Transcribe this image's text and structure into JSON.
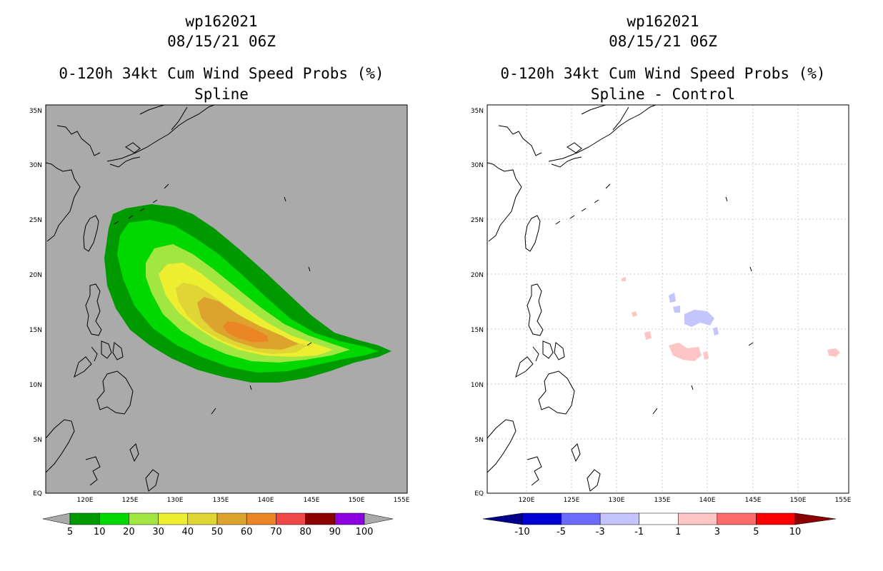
{
  "left": {
    "title1": "wp162021",
    "title2": "08/15/21 06Z",
    "title3": "0-120h 34kt Cum Wind Speed Probs (%)",
    "title4": "Spline",
    "background": "#aaaaaa",
    "colorbar": {
      "colors": [
        "#009a00",
        "#00d900",
        "#a1e641",
        "#eeee30",
        "#dfd535",
        "#dda42d",
        "#ec8526",
        "#f04747",
        "#8c0000",
        "#8d00e0"
      ],
      "labels": [
        "5",
        "10",
        "20",
        "30",
        "40",
        "50",
        "60",
        "70",
        "80",
        "90",
        "100"
      ]
    }
  },
  "right": {
    "title1": "wp162021",
    "title2": "08/15/21 06Z",
    "title3": "0-120h 34kt Cum Wind Speed Probs (%)",
    "title4": "Spline - Control",
    "background": "#ffffff",
    "colorbar": {
      "colors": [
        "#0000d4",
        "#6b6bff",
        "#c4c4ff",
        "#ffffff",
        "#ffc4c4",
        "#ff6b6b",
        "#ff0000"
      ],
      "end_colors": [
        "#00008b",
        "#8b0000"
      ],
      "labels": [
        "-10",
        "-5",
        "-3",
        "-1",
        "1",
        "3",
        "5",
        "10"
      ]
    }
  },
  "lon_ticks": [
    "120E",
    "125E",
    "130E",
    "135E",
    "140E",
    "145E",
    "150E",
    "155E"
  ],
  "lat_ticks": [
    "35N",
    "30N",
    "25N",
    "20N",
    "15N",
    "10N",
    "5N",
    "EQ"
  ]
}
